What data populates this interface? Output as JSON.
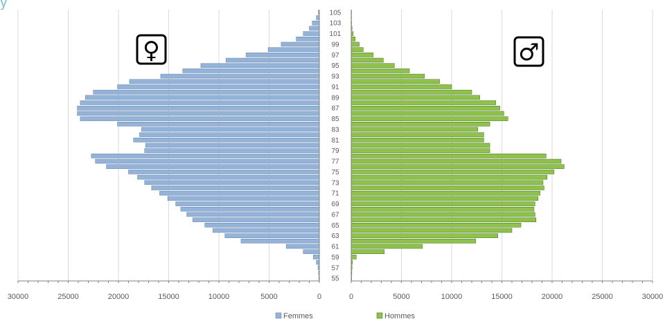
{
  "top_text": {
    "link_fragment": "",
    "rest_fragment": "y"
  },
  "chart_data": {
    "type": "bar",
    "orientation": "horizontal-pyramid",
    "title": "",
    "xlabel": "",
    "ylabel": "",
    "symbols": {
      "female": "♀",
      "male": "♂"
    },
    "ages": [
      55,
      56,
      57,
      58,
      59,
      60,
      61,
      62,
      63,
      64,
      65,
      66,
      67,
      68,
      69,
      70,
      71,
      72,
      73,
      74,
      75,
      76,
      77,
      78,
      79,
      80,
      81,
      82,
      83,
      84,
      85,
      86,
      87,
      88,
      89,
      90,
      91,
      92,
      93,
      94,
      95,
      96,
      97,
      98,
      99,
      100,
      101,
      102,
      103,
      104,
      105
    ],
    "age_tick_labels": [
      "55",
      "57",
      "59",
      "61",
      "63",
      "65",
      "67",
      "69",
      "71",
      "73",
      "75",
      "77",
      "79",
      "81",
      "83",
      "85",
      "87",
      "89",
      "91",
      "93",
      "95",
      "97",
      "99",
      "101",
      "103",
      "105"
    ],
    "x_tick_labels_left": [
      "30000",
      "25000",
      "20000",
      "15000",
      "10000",
      "5000",
      "0"
    ],
    "x_tick_labels_right": [
      "0",
      "5000",
      "10000",
      "15000",
      "20000",
      "25000",
      "30000"
    ],
    "xlim": [
      0,
      30000
    ],
    "grid": true,
    "legend_position": "bottom",
    "colors": {
      "female": "#95b3d7",
      "male": "#8fc24a",
      "female_edge": "#5a7fb0",
      "male_edge": "#3e6b18",
      "grid": "#d9d9d9",
      "axis": "#7f7f7f"
    },
    "series": [
      {
        "name": "Femmes",
        "values": [
          60,
          80,
          130,
          300,
          600,
          1600,
          3300,
          7800,
          9400,
          10600,
          11400,
          12600,
          13200,
          13800,
          14300,
          15100,
          15900,
          16700,
          17400,
          18100,
          19000,
          21200,
          22300,
          22700,
          17400,
          17300,
          18500,
          17900,
          17700,
          20100,
          23800,
          24100,
          24100,
          23800,
          23300,
          22500,
          20100,
          18900,
          15800,
          13600,
          11800,
          9300,
          7300,
          5100,
          3800,
          2300,
          1600,
          1000,
          700,
          300,
          100
        ]
      },
      {
        "name": "Hommes",
        "values": [
          40,
          60,
          80,
          120,
          500,
          3300,
          7100,
          12400,
          14600,
          16000,
          16900,
          18400,
          18300,
          18200,
          18300,
          18600,
          18800,
          19200,
          19100,
          19500,
          20200,
          21200,
          20900,
          19400,
          13800,
          13800,
          13200,
          13200,
          12600,
          13800,
          15600,
          15200,
          14800,
          14400,
          12800,
          12000,
          10000,
          8800,
          7300,
          5800,
          4300,
          3200,
          2200,
          1200,
          800,
          400,
          200,
          80,
          40,
          20,
          10
        ]
      }
    ]
  }
}
